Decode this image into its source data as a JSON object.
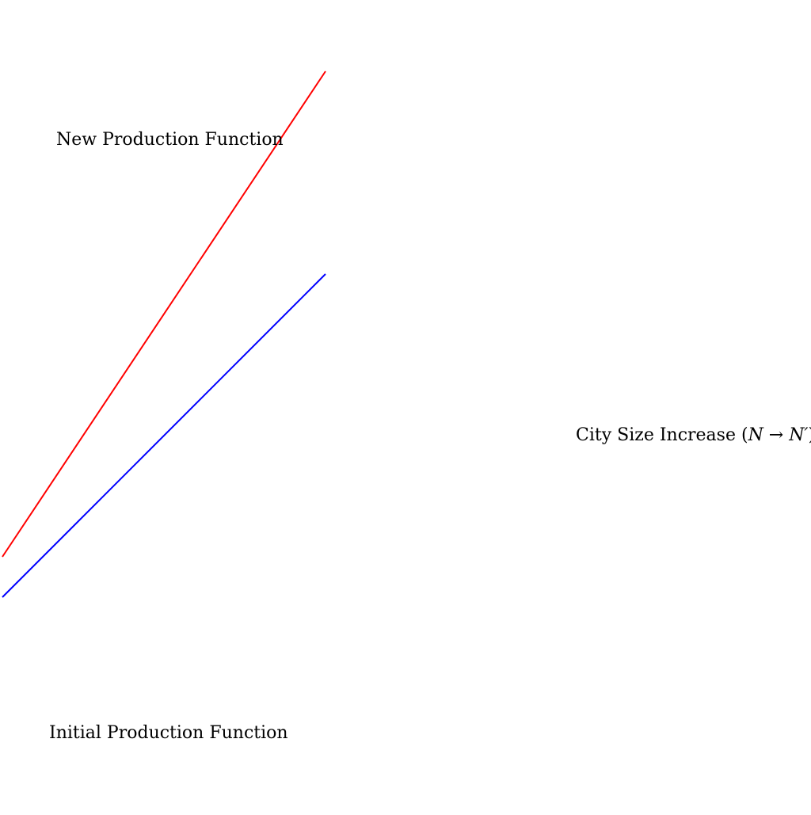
{
  "diagram": {
    "curves": [
      {
        "name": "New Production Function",
        "color": "#ff0000"
      },
      {
        "name": "Initial Production Function",
        "color": "#0000ff"
      }
    ],
    "labels": {
      "new_production": "New Production Function",
      "initial_production": "Initial Production Function",
      "city_size_prefix": "City Size Increase (",
      "city_size_n": "N",
      "city_size_arrow": " → ",
      "city_size_nprime": "N′",
      "city_size_suffix": ")"
    }
  }
}
